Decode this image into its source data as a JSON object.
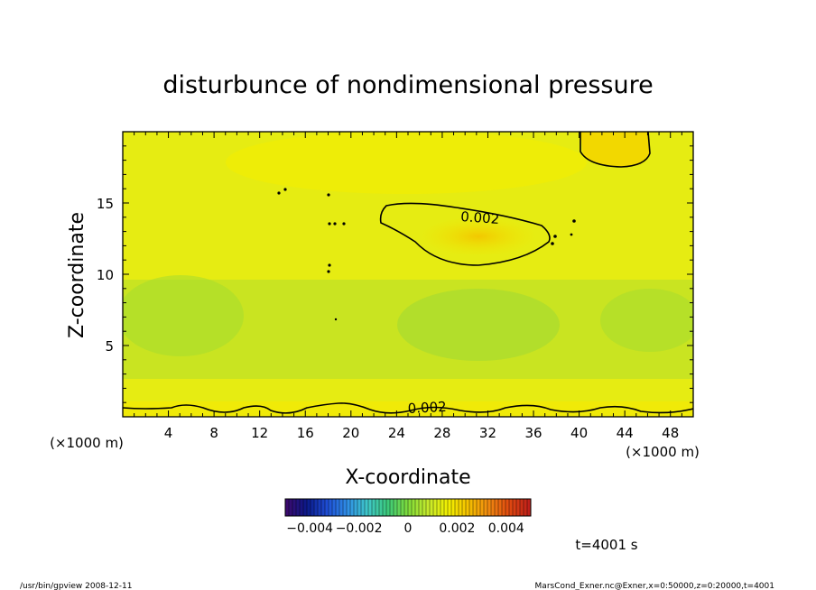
{
  "chart_data": {
    "type": "heatmap",
    "title": "disturbunce of nondimensional pressure",
    "xlabel": "X-coordinate",
    "ylabel": "Z-coordinate",
    "x_unit": "(×1000 m)",
    "y_unit": "(×1000 m)",
    "xlim": [
      0,
      50
    ],
    "ylim": [
      0,
      20
    ],
    "x_ticks": [
      4,
      8,
      12,
      16,
      20,
      24,
      28,
      32,
      36,
      40,
      44,
      48
    ],
    "y_ticks": [
      5,
      10,
      15
    ],
    "contour_labels": [
      {
        "text": "0.002",
        "x": 28,
        "z": 14.2
      },
      {
        "text": "0.002",
        "x": 27,
        "z": 0.8
      }
    ],
    "colorbar": {
      "min": -0.005,
      "max": 0.005,
      "tick_labels": [
        "−0.004",
        "−0.002",
        "0",
        "0.002",
        "0.004"
      ],
      "tick_values": [
        -0.004,
        -0.002,
        0,
        0.002,
        0.004
      ],
      "colors": [
        "#3a0a6e",
        "#0a1a8a",
        "#1f4fd6",
        "#2f8fe6",
        "#3fc8c8",
        "#3cc97a",
        "#7fdc3a",
        "#c6ea2c",
        "#f2f000",
        "#f5c000",
        "#f08a10",
        "#e04a10",
        "#c0201a"
      ]
    },
    "time_label": "t=4001 s",
    "footer_left": "/usr/bin/gpview   2008-12-11",
    "footer_right": "MarsCond_Exner.nc@Exner,x=0:50000,z=0:20000,t=4001"
  }
}
